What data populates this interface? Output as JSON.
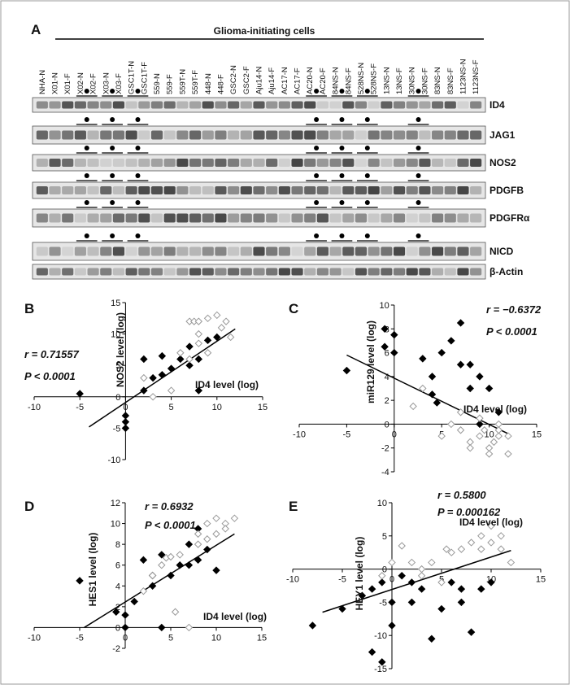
{
  "panel_a": {
    "label": "A",
    "title": "Glioma-initiating cells",
    "lanes": [
      "NHA-N",
      "X01-N",
      "X01-F",
      "X02-N",
      "X02-F",
      "X03-N",
      "X03-F",
      "GSC1T-N",
      "GSC1T-F",
      "559-N",
      "559-F",
      "559T-N",
      "559T-F",
      "448-N",
      "448-F",
      "GSC2-N",
      "GSC2-F",
      "Aju14-N",
      "Aju14-F",
      "AC17-N",
      "AC17-F",
      "AC20-N",
      "AC20-F",
      "84NS-N",
      "84NS-F",
      "528NS-N",
      "528NS-F",
      "13NS-N",
      "13NS-F",
      "30NS-N",
      "30NS-F",
      "83NS-N",
      "83NS-F",
      "1123NS-N",
      "1123NS-F"
    ],
    "proteins": [
      "ID4",
      "JAG1",
      "NOS2",
      "PDGFB",
      "PDGFRα",
      "NICD",
      "β-Actin"
    ]
  },
  "chart_data": [
    {
      "type": "scatter",
      "label": "B",
      "x_label": "ID4 level (log)",
      "y_label": "NOS2 level (log)",
      "annotations": [
        "r = 0.71557",
        "P < 0.0001"
      ],
      "xlim": [
        -10,
        15
      ],
      "ylim": [
        -10,
        15
      ],
      "xticks": [
        -10,
        -5,
        0,
        5,
        10,
        15
      ],
      "yticks": [
        -10,
        -5,
        0,
        5,
        10,
        15
      ],
      "series": [
        {
          "color": "#000000",
          "filled": true,
          "x": [
            -5,
            0,
            0,
            0,
            2,
            2,
            3,
            4,
            4,
            5,
            6,
            7,
            7,
            8,
            8,
            9,
            10
          ],
          "values": [
            0.5,
            -3,
            -5,
            -4,
            6,
            1,
            3,
            3.5,
            6.5,
            4.5,
            6,
            5,
            8,
            6,
            1,
            9,
            9.5
          ]
        },
        {
          "color": "#999999",
          "filled": false,
          "x": [
            2,
            3,
            5,
            7,
            7.5,
            8,
            8,
            9,
            10,
            10.5,
            11,
            11.5,
            9,
            6,
            8,
            7
          ],
          "values": [
            3,
            0,
            1,
            12,
            12,
            12,
            10,
            12.5,
            13,
            11,
            12,
            9.5,
            7,
            7,
            8.5,
            6
          ]
        }
      ],
      "trend_line": {
        "x": [
          -4,
          12
        ],
        "values": [
          -4.8,
          10.8
        ]
      }
    },
    {
      "type": "scatter",
      "label": "C",
      "x_label": "ID4 level (log)",
      "y_label": "miR129 level (log)",
      "annotations": [
        "r = −0.6372",
        "P < 0.0001"
      ],
      "xlim": [
        -10,
        15
      ],
      "ylim": [
        -4,
        10
      ],
      "xticks": [
        -10,
        -5,
        0,
        5,
        10,
        15
      ],
      "yticks": [
        -4,
        -2,
        0,
        2,
        4,
        6,
        8,
        10
      ],
      "series": [
        {
          "color": "#000000",
          "filled": true,
          "x": [
            -5,
            -1,
            -1,
            0,
            0,
            3,
            4,
            4,
            4.5,
            5,
            6,
            7,
            7,
            8,
            8,
            9,
            9,
            10,
            11
          ],
          "values": [
            4.5,
            8,
            6.5,
            7.5,
            6,
            5.5,
            4,
            2.5,
            1.8,
            6,
            7,
            8.5,
            5,
            5,
            3,
            4,
            0,
            3,
            1
          ]
        },
        {
          "color": "#999999",
          "filled": false,
          "x": [
            3,
            2,
            5,
            6,
            7,
            8,
            8,
            9,
            9,
            10,
            10,
            11,
            11,
            12,
            12,
            10.5,
            7,
            9.5,
            11
          ],
          "values": [
            3,
            1.5,
            -1,
            0,
            -0.5,
            -1.5,
            -2,
            -1,
            0.5,
            -2,
            -2.5,
            0,
            -1,
            -2.5,
            -1,
            -1.5,
            1,
            -0.5,
            -0.5
          ]
        }
      ],
      "trend_line": {
        "x": [
          -5,
          12
        ],
        "values": [
          5.8,
          -0.8
        ]
      }
    },
    {
      "type": "scatter",
      "label": "D",
      "x_label": "ID4 level (log)",
      "y_label": "HES1 level (log)",
      "annotations": [
        "r = 0.6932",
        "P < 0.0001"
      ],
      "xlim": [
        -10,
        15
      ],
      "ylim": [
        -2,
        12
      ],
      "xticks": [
        -10,
        -5,
        0,
        5,
        10,
        15
      ],
      "yticks": [
        -2,
        0,
        2,
        4,
        6,
        8,
        10,
        12
      ],
      "series": [
        {
          "color": "#000000",
          "filled": true,
          "x": [
            -5,
            -1,
            0,
            0,
            1,
            2,
            3,
            3,
            4,
            4,
            5,
            6,
            7,
            7,
            8,
            8,
            9,
            10
          ],
          "values": [
            4.5,
            1.5,
            1.2,
            0,
            2.5,
            6.5,
            5,
            4,
            7,
            0,
            5,
            6,
            6,
            8,
            9.5,
            6.5,
            7.5,
            5.5
          ]
        },
        {
          "color": "#999999",
          "filled": false,
          "x": [
            2,
            3,
            4,
            4.5,
            5,
            5.5,
            6,
            7,
            8,
            8,
            9,
            9,
            10,
            11,
            11,
            12,
            10
          ],
          "values": [
            3.5,
            5,
            6,
            6.7,
            6.8,
            1.5,
            7,
            0,
            8,
            9,
            8.5,
            10,
            10.5,
            10,
            9.5,
            10.5,
            9
          ]
        }
      ],
      "trend_line": {
        "x": [
          -4.5,
          12
        ],
        "values": [
          0,
          9
        ]
      }
    },
    {
      "type": "scatter",
      "label": "E",
      "x_label": "ID4 level (log)",
      "y_label": "HEY1 level (log)",
      "annotations": [
        "r = 0.5800",
        "P = 0.000162"
      ],
      "xlim": [
        -10,
        15
      ],
      "ylim": [
        -15,
        10
      ],
      "xticks": [
        -10,
        -5,
        0,
        5,
        10,
        15
      ],
      "yticks": [
        -15,
        -10,
        -5,
        0,
        5,
        10
      ],
      "series": [
        {
          "color": "#000000",
          "filled": true,
          "x": [
            -8,
            -5,
            -3,
            -2,
            -1,
            0,
            0,
            1,
            2,
            2,
            3,
            4,
            5,
            6,
            7,
            7,
            8,
            9,
            10,
            -1,
            -2
          ],
          "values": [
            -8.5,
            -6,
            -4,
            -3,
            -2,
            -5,
            -8.5,
            -1,
            -5,
            -2,
            -3,
            -10.5,
            -6,
            -2,
            -3,
            -5,
            -9.5,
            -3,
            -2,
            -14,
            -12.5
          ]
        },
        {
          "color": "#999999",
          "filled": false,
          "x": [
            -1,
            0,
            1,
            2,
            3,
            4,
            5,
            6,
            7,
            8,
            9,
            9,
            10,
            10,
            11,
            11,
            12,
            5.5,
            3
          ],
          "values": [
            -1,
            1,
            3.5,
            1,
            0,
            1,
            -2,
            2.5,
            3,
            4,
            3,
            5,
            6.5,
            4,
            3,
            5,
            1,
            3,
            -1
          ]
        }
      ],
      "trend_line": {
        "x": [
          -7,
          12
        ],
        "values": [
          -6.5,
          2.8
        ]
      }
    }
  ]
}
